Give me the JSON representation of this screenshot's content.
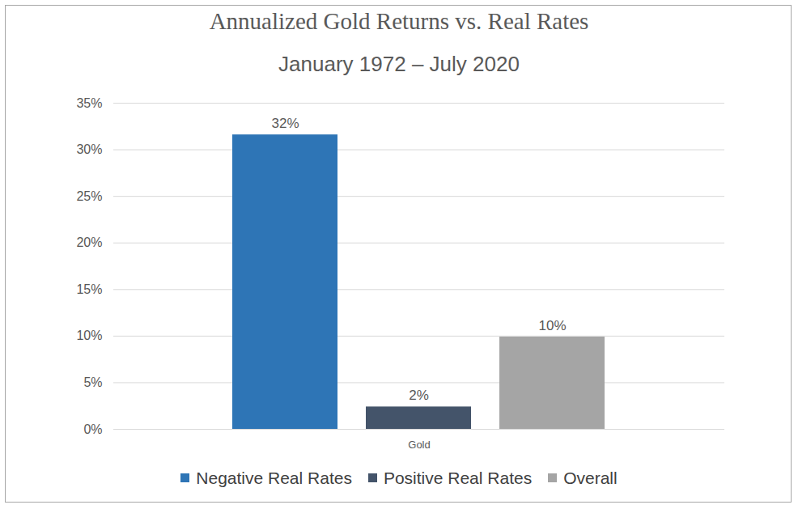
{
  "chart_data": {
    "type": "bar",
    "title": "Annualized Gold Returns vs. Real Rates",
    "subtitle": "January 1972 – July 2020",
    "categories": [
      "Gold"
    ],
    "series": [
      {
        "name": "Negative Real Rates",
        "color": "#2e75b6",
        "values": [
          31.6
        ],
        "value_labels": [
          "32%"
        ]
      },
      {
        "name": "Positive Real Rates",
        "color": "#44546a",
        "values": [
          2.4
        ],
        "value_labels": [
          "2%"
        ]
      },
      {
        "name": "Overall",
        "color": "#a5a5a5",
        "values": [
          9.9
        ],
        "value_labels": [
          "10%"
        ]
      }
    ],
    "ylim": [
      0,
      35
    ],
    "yticks": [
      {
        "value": 0,
        "label": "0%"
      },
      {
        "value": 5,
        "label": "5%"
      },
      {
        "value": 10,
        "label": "10%"
      },
      {
        "value": 15,
        "label": "15%"
      },
      {
        "value": 20,
        "label": "20%"
      },
      {
        "value": 25,
        "label": "25%"
      },
      {
        "value": 30,
        "label": "30%"
      },
      {
        "value": 35,
        "label": "35%"
      }
    ],
    "grid": true,
    "legend": "bottom",
    "data_labels": true
  }
}
